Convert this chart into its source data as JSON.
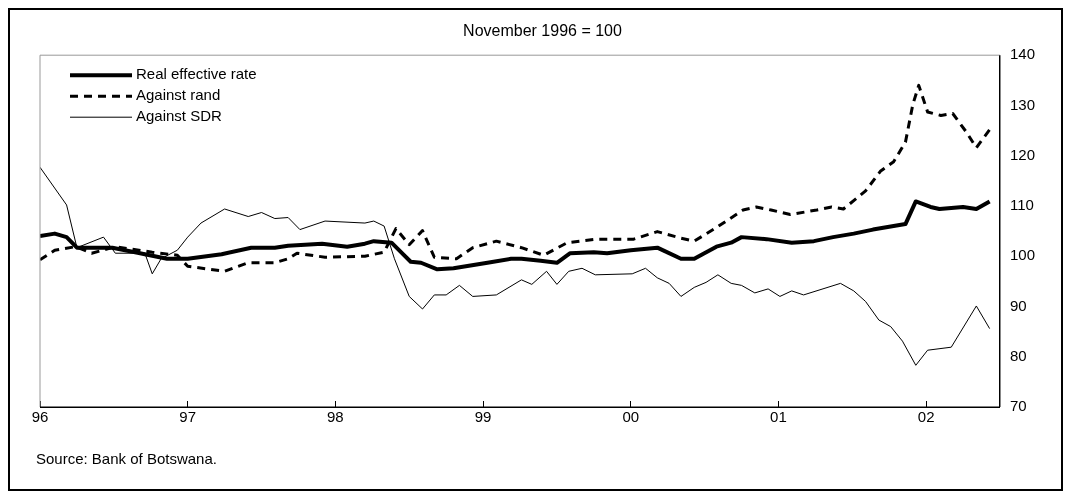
{
  "chart_data": {
    "type": "line",
    "title": "November 1996 = 100",
    "xlim": [
      1996,
      2002.5
    ],
    "xticks": [
      {
        "value": 1996,
        "label": "96"
      },
      {
        "value": 1997,
        "label": "97"
      },
      {
        "value": 1998,
        "label": "98"
      },
      {
        "value": 1999,
        "label": "99"
      },
      {
        "value": 2000,
        "label": "00"
      },
      {
        "value": 2001,
        "label": "01"
      },
      {
        "value": 2002,
        "label": "02"
      }
    ],
    "ylim": [
      70,
      140
    ],
    "yticks": [
      70,
      80,
      90,
      100,
      110,
      120,
      130,
      140
    ],
    "grid": false,
    "legend": "top left",
    "marker": "none",
    "annotations": [
      "Source: Bank of Botswana."
    ],
    "series": [
      {
        "name": "Real effective rate",
        "color": "#000000",
        "line_style": "solid",
        "x": [
          1996.0,
          1996.1,
          1996.18,
          1996.25,
          1996.49,
          1996.71,
          1996.86,
          1997.0,
          1997.23,
          1997.43,
          1997.59,
          1997.68,
          1997.91,
          1998.08,
          1998.2,
          1998.26,
          1998.38,
          1998.51,
          1998.58,
          1998.69,
          1998.8,
          1999.03,
          1999.19,
          1999.26,
          1999.39,
          1999.5,
          1999.59,
          1999.75,
          1999.84,
          2000.0,
          2000.18,
          2000.34,
          2000.43,
          2000.58,
          2000.68,
          2000.75,
          2000.92,
          2001.09,
          2001.24,
          2001.37,
          2001.51,
          2001.64,
          2001.78,
          2001.86,
          2001.93,
          2002.03,
          2002.09,
          2002.25,
          2002.34,
          2002.43
        ],
        "values": [
          104.0,
          104.5,
          103.8,
          101.7,
          101.7,
          100.4,
          99.5,
          99.5,
          100.4,
          101.7,
          101.7,
          102.1,
          102.5,
          101.9,
          102.5,
          103.0,
          102.7,
          98.9,
          98.7,
          97.4,
          97.6,
          98.7,
          99.5,
          99.5,
          99.1,
          98.7,
          100.6,
          100.8,
          100.6,
          101.2,
          101.7,
          99.5,
          99.5,
          101.9,
          102.7,
          103.8,
          103.4,
          102.7,
          103.0,
          103.8,
          104.5,
          105.3,
          106.0,
          106.4,
          110.9,
          109.8,
          109.4,
          109.8,
          109.4,
          110.9
        ]
      },
      {
        "name": "Against rand",
        "color": "#000000",
        "line_style": "dashed",
        "x": [
          1996.0,
          1996.1,
          1996.24,
          1996.35,
          1996.51,
          1996.76,
          1996.93,
          1997.0,
          1997.25,
          1997.41,
          1997.59,
          1997.68,
          1997.74,
          1997.93,
          1998.2,
          1998.33,
          1998.41,
          1998.5,
          1998.59,
          1998.67,
          1998.82,
          1998.93,
          1999.09,
          1999.26,
          1999.41,
          1999.57,
          1999.77,
          2000.02,
          2000.18,
          2000.34,
          2000.43,
          2000.58,
          2000.76,
          2000.85,
          2000.95,
          2001.08,
          2001.26,
          2001.36,
          2001.44,
          2001.52,
          2001.59,
          2001.69,
          2001.78,
          2001.86,
          2001.91,
          2001.95,
          2002.01,
          2002.1,
          2002.18,
          2002.27,
          2002.34,
          2002.43
        ],
        "values": [
          99.3,
          101.2,
          101.9,
          100.6,
          101.9,
          100.8,
          100.2,
          98.0,
          97.0,
          98.7,
          98.7,
          99.5,
          100.6,
          99.8,
          100.0,
          100.8,
          105.5,
          102.3,
          105.1,
          99.8,
          99.5,
          101.7,
          103.0,
          101.7,
          100.2,
          102.7,
          103.4,
          103.4,
          104.9,
          103.6,
          103.0,
          105.7,
          109.2,
          109.8,
          109.2,
          108.3,
          109.2,
          109.8,
          109.4,
          111.3,
          113.0,
          116.9,
          118.8,
          122.7,
          130.2,
          134.0,
          128.7,
          128.0,
          128.4,
          124.8,
          121.6,
          125.2
        ]
      },
      {
        "name": "Against SDR",
        "color": "#000000",
        "line_style": "solid",
        "x": [
          1996.0,
          1996.18,
          1996.25,
          1996.43,
          1996.51,
          1996.71,
          1996.76,
          1996.82,
          1996.93,
          1997.0,
          1997.09,
          1997.25,
          1997.41,
          1997.5,
          1997.59,
          1997.68,
          1997.76,
          1997.93,
          1998.2,
          1998.26,
          1998.33,
          1998.4,
          1998.5,
          1998.59,
          1998.67,
          1998.75,
          1998.84,
          1998.93,
          1999.09,
          1999.26,
          1999.33,
          1999.43,
          1999.5,
          1999.58,
          1999.67,
          1999.76,
          2000.01,
          2000.1,
          2000.18,
          2000.26,
          2000.34,
          2000.43,
          2000.51,
          2000.59,
          2000.68,
          2000.75,
          2000.84,
          2000.93,
          2001.01,
          2001.09,
          2001.17,
          2001.42,
          2001.51,
          2001.59,
          2001.68,
          2001.76,
          2001.84,
          2001.93,
          2002.01,
          2002.17,
          2002.34,
          2002.43
        ],
        "values": [
          117.7,
          110.2,
          101.7,
          103.8,
          100.6,
          100.6,
          96.5,
          99.5,
          101.2,
          103.8,
          106.6,
          109.4,
          107.9,
          108.7,
          107.5,
          107.7,
          105.3,
          107.0,
          106.6,
          107.0,
          106.0,
          99.5,
          92.0,
          89.5,
          92.3,
          92.3,
          94.2,
          92.0,
          92.3,
          95.3,
          94.4,
          97.0,
          94.4,
          97.0,
          97.6,
          96.3,
          96.5,
          97.6,
          95.7,
          94.6,
          92.0,
          93.8,
          94.8,
          96.3,
          94.6,
          94.2,
          92.7,
          93.5,
          92.0,
          93.1,
          92.3,
          94.6,
          93.1,
          91.0,
          87.3,
          86.0,
          83.1,
          78.3,
          81.3,
          81.9,
          90.1,
          85.6
        ]
      }
    ]
  }
}
